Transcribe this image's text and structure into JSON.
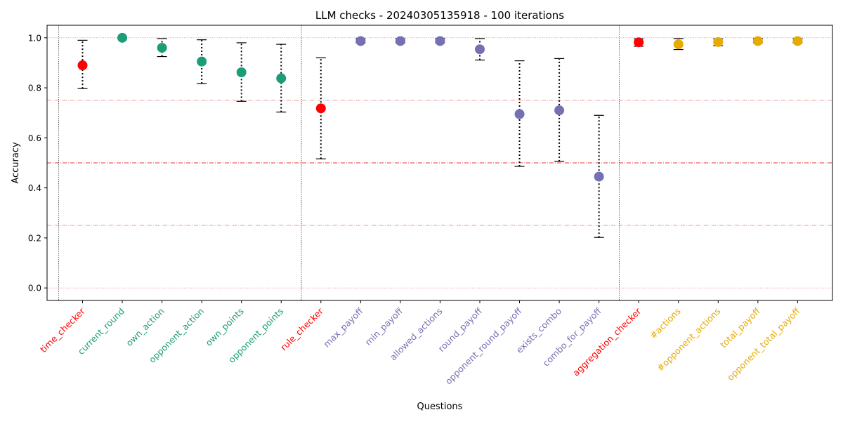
{
  "chart_data": {
    "type": "scatter",
    "title": "LLM checks - 20240305135918 - 100 iterations",
    "xlabel": "Questions",
    "ylabel": "Accuracy",
    "ylim": [
      -0.05,
      1.05
    ],
    "yticks": [
      "0.0",
      "0.2",
      "0.4",
      "0.6",
      "0.8",
      "1.0"
    ],
    "grid": false,
    "reference_lines": [
      0,
      0.25,
      0.5,
      0.75,
      1.0
    ],
    "group_separators_after_index": [
      -1,
      5,
      13
    ],
    "categories": [
      "time_checker",
      "current_round",
      "own_action",
      "opponent_action",
      "own_points",
      "opponent_points",
      "rule_checker",
      "max_payoff",
      "min_payoff",
      "allowed_actions",
      "round_payoff",
      "opponent_round_payoff",
      "exists_combo",
      "combo_for_payoff",
      "aggregation_checker",
      "#actions",
      "#opponent_actions",
      "total_payoff",
      "opponent_total_payoff"
    ],
    "values": [
      0.89,
      1.0,
      0.96,
      0.905,
      0.862,
      0.838,
      0.718,
      0.987,
      0.987,
      0.987,
      0.954,
      0.695,
      0.71,
      0.445,
      0.982,
      0.974,
      0.983,
      0.987,
      0.987
    ],
    "ci_low": [
      0.797,
      1.0,
      0.925,
      0.817,
      0.746,
      0.703,
      0.516,
      0.98,
      0.98,
      0.98,
      0.911,
      0.486,
      0.506,
      0.202,
      0.966,
      0.953,
      0.968,
      0.98,
      0.98
    ],
    "ci_high": [
      0.99,
      1.0,
      0.997,
      0.992,
      0.98,
      0.974,
      0.92,
      0.997,
      0.997,
      0.997,
      0.997,
      0.908,
      0.917,
      0.69,
      0.996,
      0.997,
      0.996,
      0.997,
      0.997
    ],
    "category_colors": [
      "#ff0000",
      "#1b9e77",
      "#1b9e77",
      "#1b9e77",
      "#1b9e77",
      "#1b9e77",
      "#ff0000",
      "#7570b3",
      "#7570b3",
      "#7570b3",
      "#7570b3",
      "#7570b3",
      "#7570b3",
      "#7570b3",
      "#ff0000",
      "#e6ab02",
      "#e6ab02",
      "#e6ab02",
      "#e6ab02"
    ],
    "point_colors": [
      "#ff0000",
      "#1b9e77",
      "#1b9e77",
      "#1b9e77",
      "#1b9e77",
      "#1b9e77",
      "#ff0000",
      "#7570b3",
      "#7570b3",
      "#7570b3",
      "#7570b3",
      "#7570b3",
      "#7570b3",
      "#7570b3",
      "#ff0000",
      "#e6ab02",
      "#e6ab02",
      "#e6ab02",
      "#e6ab02"
    ],
    "reference_line_color": "#e03030"
  }
}
